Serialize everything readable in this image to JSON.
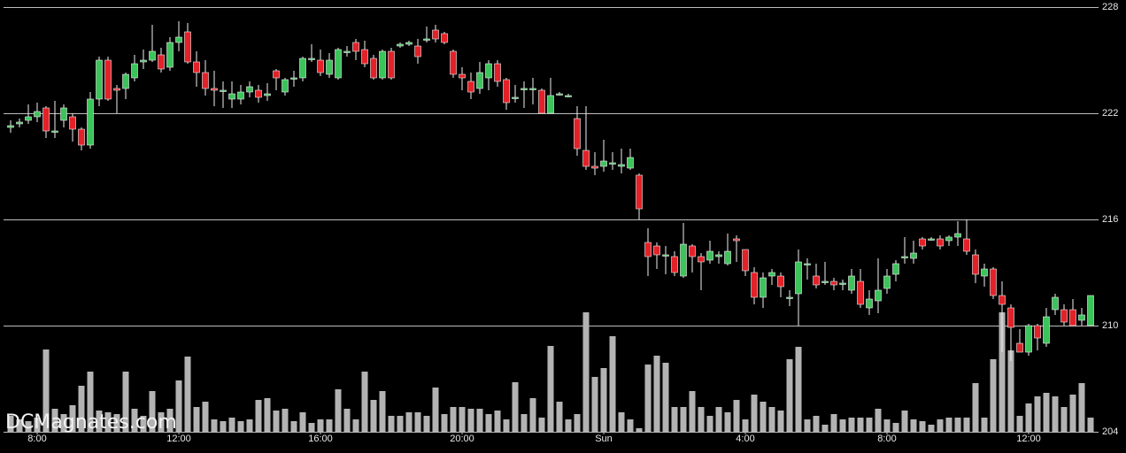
{
  "chart_data": {
    "type": "candlestick",
    "watermark": "DCMagnates.com",
    "ylim": [
      204,
      228
    ],
    "yticks": [
      204,
      210,
      216,
      222,
      228
    ],
    "grid": true,
    "up_color": "#3cc35a",
    "down_color": "#e32128",
    "volume_color": "#b3b3b3",
    "xticks": [
      {
        "value": 3,
        "label": "8:00"
      },
      {
        "value": 19,
        "label": "12:00"
      },
      {
        "value": 35,
        "label": "16:00"
      },
      {
        "value": 51,
        "label": "20:00"
      },
      {
        "value": 67,
        "label": "Sun"
      },
      {
        "value": 83,
        "label": "4:00"
      },
      {
        "value": 99,
        "label": "8:00"
      },
      {
        "value": 115,
        "label": "12:00"
      }
    ],
    "open": [
      221.2,
      221.4,
      221.6,
      221.8,
      222.3,
      221.0,
      221.6,
      221.8,
      221.1,
      220.2,
      222.8,
      225.0,
      223.4,
      223.4,
      224.0,
      224.9,
      225.0,
      225.3,
      224.6,
      226.0,
      226.6,
      224.9,
      224.3,
      223.4,
      223.3,
      222.8,
      222.8,
      223.2,
      223.3,
      223.0,
      224.4,
      223.2,
      224.0,
      224.0,
      225.1,
      225.0,
      224.2,
      224.0,
      225.5,
      226.0,
      225.6,
      225.1,
      224.0,
      225.5,
      225.8,
      225.9,
      225.8,
      226.2,
      226.7,
      226.5,
      225.5,
      224.2,
      223.8,
      223.4,
      224.0,
      224.8,
      223.9,
      222.9,
      223.4,
      223.4,
      223.3,
      222.0,
      223.1,
      223.0,
      221.7,
      219.9,
      219.0,
      219.0,
      219.2,
      219.0,
      218.9,
      218.5,
      214.7,
      214.5,
      214.0,
      213.9,
      212.8,
      214.5,
      213.9,
      213.7,
      213.9,
      213.5,
      214.9,
      214.3,
      213.0,
      211.6,
      212.8,
      212.8,
      211.6,
      211.8,
      213.5,
      212.8,
      212.5,
      212.5,
      212.4,
      212.0,
      212.5,
      211.0,
      211.4,
      212.1,
      212.9,
      213.9,
      213.8,
      214.9,
      214.9,
      214.9,
      214.8,
      215.0,
      214.9,
      214.0,
      212.8,
      213.2,
      211.7,
      211.0,
      209.0,
      208.5,
      210.0,
      209.0,
      210.9,
      210.9,
      210.9,
      210.3,
      210.0
    ],
    "high": [
      221.6,
      221.7,
      222.5,
      222.6,
      222.4,
      222.7,
      222.5,
      222.0,
      221.2,
      223.2,
      225.2,
      225.2,
      223.6,
      224.3,
      225.3,
      225.6,
      227.0,
      225.7,
      226.3,
      227.2,
      227.1,
      225.5,
      225.0,
      224.4,
      223.8,
      223.8,
      223.6,
      223.8,
      223.6,
      223.7,
      224.5,
      224.0,
      224.4,
      225.2,
      225.9,
      225.6,
      225.4,
      225.7,
      225.8,
      226.2,
      226.1,
      225.3,
      225.6,
      225.7,
      226.0,
      226.1,
      226.2,
      226.9,
      227.0,
      226.6,
      225.6,
      224.6,
      224.3,
      224.9,
      225.0,
      225.0,
      224.0,
      223.6,
      223.8,
      224.0,
      223.4,
      224.0,
      223.2,
      223.1,
      222.4,
      222.4,
      219.8,
      220.5,
      219.8,
      220.0,
      220.0,
      218.6,
      215.5,
      214.7,
      214.5,
      214.2,
      215.8,
      214.6,
      214.1,
      214.8,
      214.2,
      215.2,
      215.1,
      214.3,
      213.3,
      213.0,
      213.2,
      213.0,
      212.0,
      214.3,
      213.8,
      213.5,
      213.6,
      212.7,
      212.6,
      213.2,
      213.2,
      212.0,
      213.8,
      213.2,
      213.7,
      215.0,
      214.8,
      215.0,
      215.0,
      215.1,
      215.1,
      215.9,
      216.0,
      214.3,
      213.5,
      213.3,
      212.5,
      211.2,
      209.8,
      210.1,
      210.1,
      211.0,
      211.8,
      211.2,
      211.5,
      211.0,
      211.7
    ],
    "low": [
      220.9,
      221.2,
      221.4,
      221.5,
      220.6,
      220.6,
      221.2,
      220.4,
      219.9,
      220.0,
      222.4,
      222.7,
      222.0,
      222.8,
      223.8,
      224.5,
      224.9,
      224.3,
      224.4,
      225.5,
      224.8,
      223.5,
      223.0,
      222.4,
      222.3,
      222.3,
      222.5,
      222.9,
      222.6,
      222.7,
      223.3,
      223.0,
      223.5,
      223.8,
      224.9,
      224.1,
      224.0,
      223.9,
      225.2,
      225.0,
      224.6,
      223.9,
      223.9,
      223.9,
      225.7,
      225.8,
      224.8,
      226.0,
      226.0,
      225.9,
      224.0,
      223.3,
      222.8,
      223.1,
      223.3,
      223.5,
      222.2,
      222.6,
      222.3,
      222.5,
      222.0,
      222.0,
      223.0,
      222.9,
      219.6,
      218.8,
      218.5,
      218.7,
      218.8,
      218.6,
      218.8,
      216.0,
      212.8,
      213.2,
      212.9,
      212.8,
      212.7,
      213.0,
      212.0,
      213.5,
      213.5,
      213.4,
      213.6,
      212.8,
      211.2,
      211.0,
      212.3,
      211.6,
      211.1,
      210.0,
      212.6,
      212.1,
      212.3,
      212.0,
      212.0,
      211.8,
      211.0,
      210.6,
      210.7,
      211.8,
      212.5,
      213.5,
      213.5,
      214.3,
      214.8,
      214.3,
      214.5,
      214.5,
      214.0,
      212.4,
      212.2,
      211.5,
      208.5,
      208.0,
      208.5,
      208.3,
      208.6,
      208.8,
      210.6,
      210.0,
      210.0,
      210.0,
      210.0
    ],
    "close": [
      221.3,
      221.5,
      221.8,
      222.1,
      221.0,
      221.0,
      222.3,
      221.1,
      220.2,
      222.8,
      225.0,
      222.8,
      223.3,
      224.2,
      224.8,
      225.0,
      225.5,
      224.5,
      226.0,
      226.3,
      224.9,
      224.3,
      223.4,
      223.3,
      223.3,
      223.1,
      223.2,
      223.5,
      222.9,
      223.1,
      224.0,
      223.9,
      224.0,
      225.1,
      225.1,
      224.3,
      225.0,
      225.6,
      225.5,
      225.5,
      224.8,
      224.0,
      225.5,
      224.0,
      225.9,
      226.0,
      225.2,
      226.2,
      226.2,
      226.0,
      224.2,
      224.0,
      223.2,
      224.3,
      224.8,
      223.8,
      222.6,
      222.9,
      223.4,
      223.4,
      222.0,
      223.0,
      223.1,
      223.0,
      220.0,
      219.0,
      218.9,
      219.3,
      219.2,
      219.1,
      219.5,
      216.6,
      213.9,
      214.0,
      214.0,
      213.0,
      214.6,
      213.9,
      213.6,
      214.2,
      214.0,
      214.2,
      214.8,
      213.1,
      211.6,
      212.7,
      213.0,
      212.2,
      211.6,
      213.6,
      213.5,
      212.3,
      212.5,
      212.3,
      212.4,
      212.8,
      211.2,
      211.5,
      212.0,
      212.8,
      213.5,
      213.9,
      214.1,
      214.5,
      214.9,
      214.5,
      215.0,
      215.2,
      214.2,
      212.9,
      213.2,
      211.7,
      211.2,
      209.9,
      208.5,
      210.0,
      209.3,
      210.5,
      211.6,
      210.2,
      210.0,
      210.6,
      211.7
    ],
    "volume": [
      18,
      14,
      12,
      16,
      93,
      26,
      20,
      30,
      52,
      68,
      24,
      22,
      20,
      68,
      26,
      18,
      46,
      22,
      26,
      58,
      85,
      28,
      34,
      14,
      12,
      16,
      12,
      14,
      36,
      38,
      24,
      26,
      12,
      22,
      10,
      14,
      14,
      48,
      26,
      14,
      68,
      36,
      46,
      18,
      18,
      22,
      22,
      18,
      50,
      20,
      28,
      28,
      26,
      26,
      20,
      24,
      14,
      56,
      20,
      38,
      16,
      97,
      34,
      14,
      20,
      135,
      62,
      72,
      108,
      22,
      14,
      4,
      76,
      86,
      78,
      28,
      28,
      46,
      28,
      18,
      28,
      22,
      36,
      14,
      42,
      34,
      28,
      24,
      82,
      96,
      14,
      18,
      8,
      20,
      14,
      16,
      16,
      16,
      26,
      14,
      10,
      24,
      14,
      12,
      8,
      14,
      16,
      16,
      16,
      55,
      16,
      82,
      135,
      92,
      18,
      32,
      40,
      44,
      40,
      28,
      42,
      55,
      16
    ]
  }
}
